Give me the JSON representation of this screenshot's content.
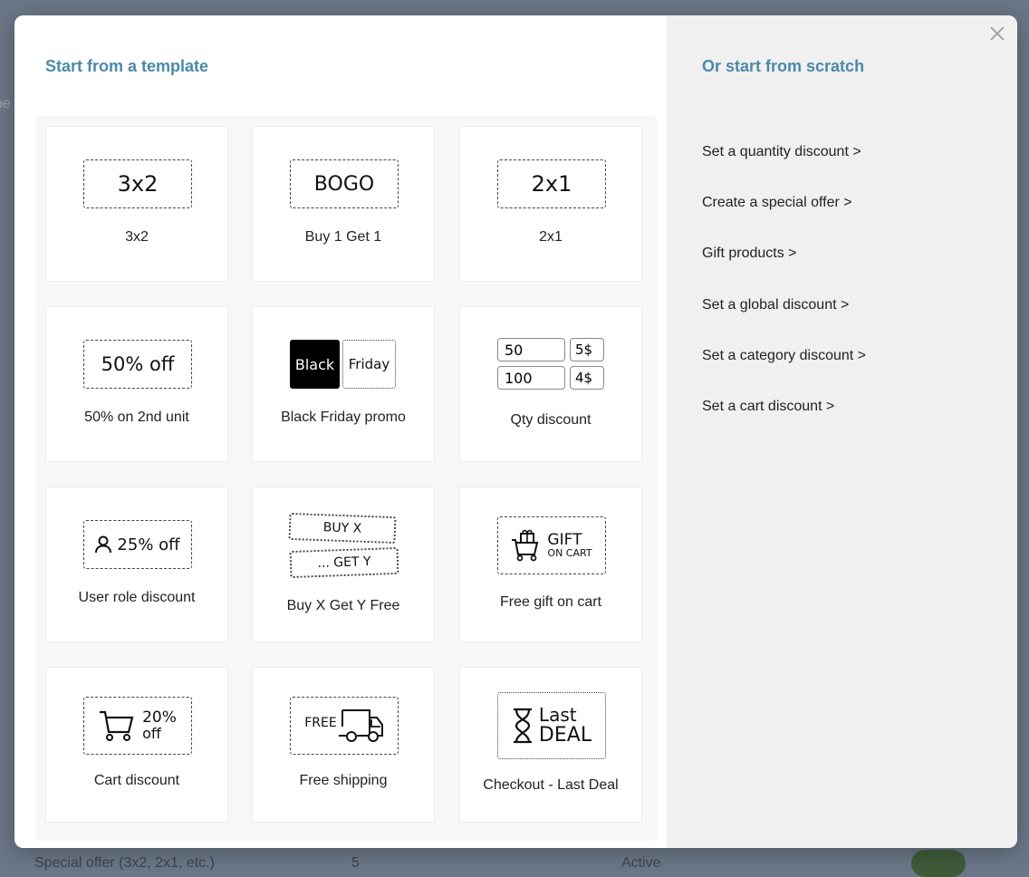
{
  "background": {
    "partial_text": "pe",
    "row_name": "Special offer (3x2, 2x1, etc.)",
    "row_count": "5",
    "row_status": "Active"
  },
  "modal": {
    "left_heading": "Start from a template",
    "right_heading": "Or start from scratch",
    "close_icon": "close-icon",
    "templates": [
      {
        "label": "3x2",
        "art": "3x2"
      },
      {
        "label": "Buy 1 Get 1",
        "art": "BOGO"
      },
      {
        "label": "2x1",
        "art": "2x1"
      },
      {
        "label": "50% on 2nd unit",
        "art": "50% off"
      },
      {
        "label": "Black Friday promo",
        "art_a": "Black",
        "art_b": "Friday"
      },
      {
        "label": "Qty discount",
        "rows": [
          [
            "50",
            "5$"
          ],
          [
            "100",
            "4$"
          ]
        ]
      },
      {
        "label": "User role discount",
        "art": "25% off",
        "icon": "user-icon"
      },
      {
        "label": "Buy X Get Y Free",
        "art_a": "BUY X",
        "art_b": "... GET Y"
      },
      {
        "label": "Free gift on cart",
        "art_a": "GIFT",
        "art_b": "ON CART",
        "icon": "gift-cart-icon"
      },
      {
        "label": "Cart discount",
        "art_a": "20%",
        "art_b": "off",
        "icon": "cart-icon"
      },
      {
        "label": "Free shipping",
        "art": "FREE",
        "icon": "truck-icon"
      },
      {
        "label": "Checkout - Last Deal",
        "art_a": "Last",
        "art_b": "DEAL",
        "icon": "hourglass-icon"
      }
    ],
    "scratch_links": [
      "Set a quantity discount >",
      "Create a special offer >",
      "Gift products >",
      "Set a global discount >",
      "Set a category discount >",
      "Set a cart discount >"
    ]
  }
}
